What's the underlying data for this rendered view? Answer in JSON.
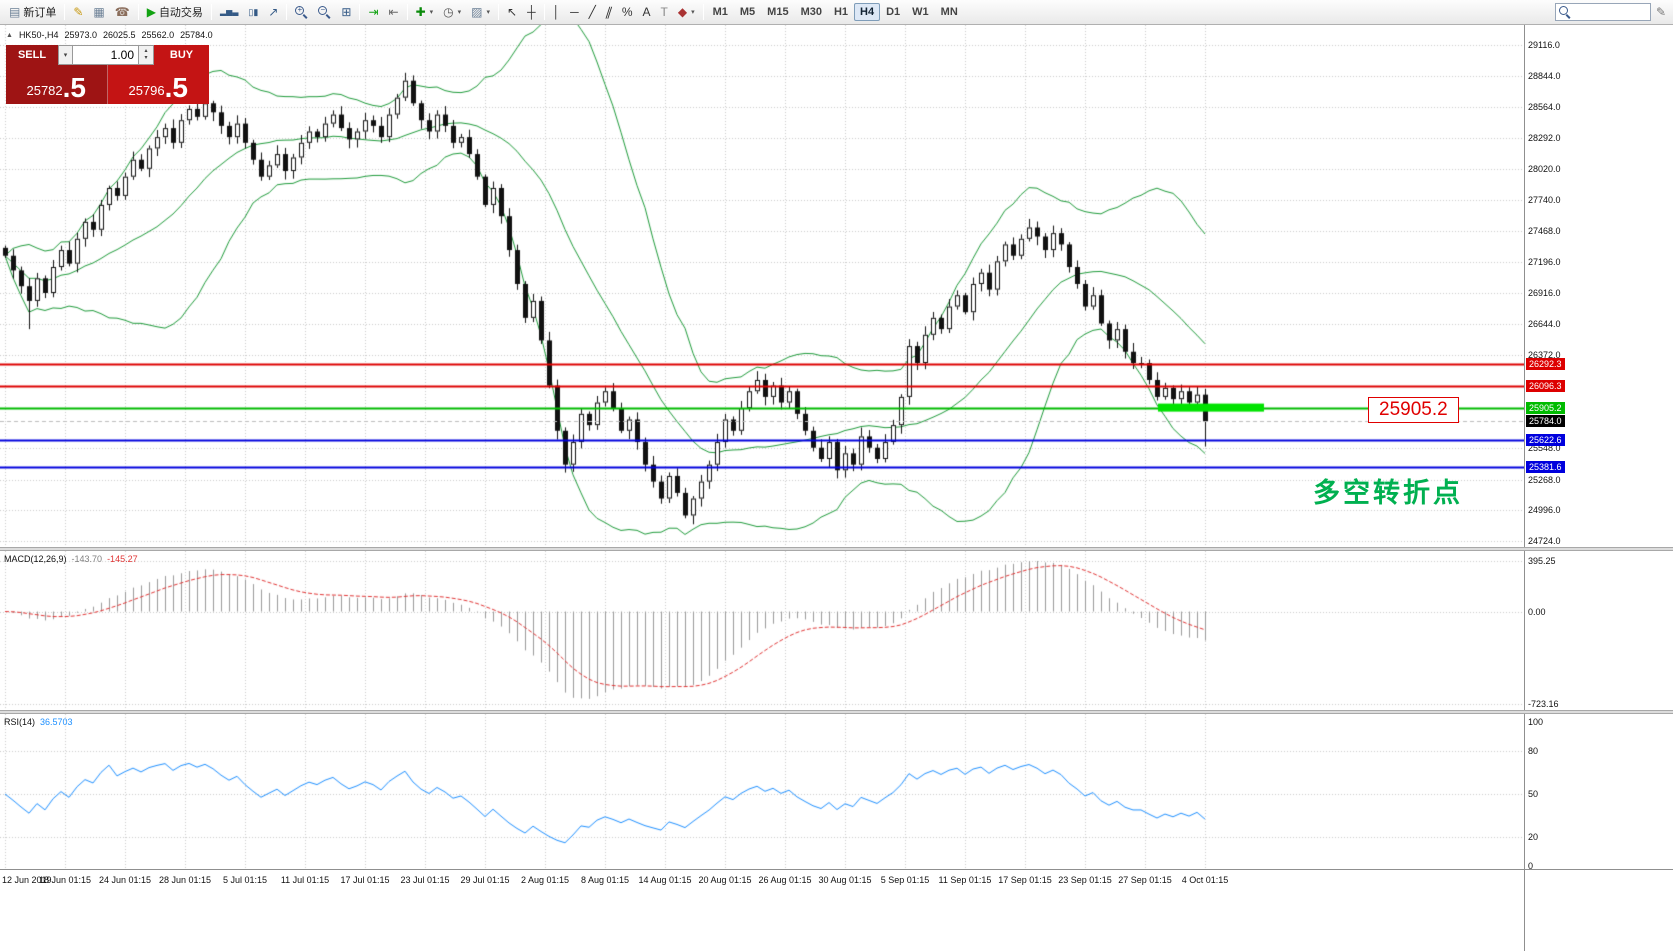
{
  "toolbar": {
    "groups": [
      {
        "name": "standard",
        "items": [
          {
            "name": "new-order-button",
            "icon": "doc",
            "label": "新订单"
          }
        ]
      },
      {
        "name": "apps",
        "items": [
          {
            "name": "meta-editor-button",
            "icon": "pencil"
          },
          {
            "name": "market-watch-button",
            "icon": "monitor"
          },
          {
            "name": "mobile-terminal-button",
            "icon": "phone"
          }
        ]
      },
      {
        "name": "autotrade",
        "items": [
          {
            "name": "autotrading-button",
            "icon": "play",
            "label": "自动交易"
          }
        ]
      },
      {
        "name": "chart-types",
        "items": [
          {
            "name": "bar-chart-button",
            "icon": "bars"
          },
          {
            "name": "candlestick-chart-button",
            "icon": "candles"
          },
          {
            "name": "line-chart-button",
            "icon": "line"
          }
        ]
      },
      {
        "name": "zoom",
        "items": [
          {
            "name": "zoom-in-button",
            "icon": "magplus"
          },
          {
            "name": "zoom-out-button",
            "icon": "magminus"
          },
          {
            "name": "tile-windows-button",
            "icon": "tile"
          }
        ]
      },
      {
        "name": "scroll",
        "items": [
          {
            "name": "auto-scroll-button",
            "icon": "autoscroll"
          },
          {
            "name": "chart-shift-button",
            "icon": "shift"
          }
        ]
      },
      {
        "name": "insert",
        "items": [
          {
            "name": "indicators-button",
            "icon": "indicators",
            "dropdown": true
          },
          {
            "name": "periods-button",
            "icon": "clock",
            "dropdown": true
          },
          {
            "name": "templates-button",
            "icon": "template",
            "dropdown": true
          }
        ]
      },
      {
        "name": "pointer",
        "items": [
          {
            "name": "cursor-button",
            "icon": "cursor"
          },
          {
            "name": "crosshair-button",
            "icon": "crosshair"
          }
        ]
      },
      {
        "name": "objects",
        "items": [
          {
            "name": "vertical-line-button",
            "icon": "vline"
          },
          {
            "name": "horizontal-line-button",
            "icon": "hline"
          },
          {
            "name": "trendline-button",
            "icon": "trend"
          },
          {
            "name": "equidistant-channel-button",
            "icon": "channel"
          },
          {
            "name": "fibonacci-button",
            "icon": "fibo"
          },
          {
            "name": "text-button",
            "icon": "text"
          },
          {
            "name": "text-label-button",
            "icon": "label"
          },
          {
            "name": "arrows-button",
            "icon": "shapes",
            "dropdown": true
          }
        ]
      },
      {
        "name": "timeframes",
        "items": [
          {
            "name": "tf-m1",
            "label": "M1"
          },
          {
            "name": "tf-m5",
            "label": "M5"
          },
          {
            "name": "tf-m15",
            "label": "M15"
          },
          {
            "name": "tf-m30",
            "label": "M30"
          },
          {
            "name": "tf-h1",
            "label": "H1"
          },
          {
            "name": "tf-h4",
            "label": "H4",
            "active": true
          },
          {
            "name": "tf-d1",
            "label": "D1"
          },
          {
            "name": "tf-w1",
            "label": "W1"
          },
          {
            "name": "tf-mn",
            "label": "MN"
          }
        ]
      }
    ],
    "search_placeholder": ""
  },
  "chart_info": {
    "expand_icon": "▲",
    "symbol": "HK50-,H4",
    "open": "25973.0",
    "high": "26025.5",
    "low": "25562.0",
    "close": "25784.0"
  },
  "one_click": {
    "sell_label": "SELL",
    "buy_label": "BUY",
    "volume": "1.00",
    "sell_price": "25782.5",
    "buy_price": "25796.5"
  },
  "annotations": {
    "level_box_label": "25905.2",
    "turning_point_text": "多空转折点"
  },
  "chart_data": {
    "type": "candlestick",
    "symbol": "HK50-",
    "timeframe": "H4",
    "overlay": "bollinger-bands",
    "price_axis": {
      "ticks": [
        "29116.0",
        "28844.0",
        "28564.0",
        "28292.0",
        "28020.0",
        "27740.0",
        "27468.0",
        "27196.0",
        "26916.0",
        "26644.0",
        "26372.0",
        "25548.0",
        "25268.0",
        "24996.0",
        "24724.0"
      ]
    },
    "levels": [
      {
        "value": "26292.3",
        "color": "#dd0000"
      },
      {
        "value": "26096.3",
        "color": "#dd0000"
      },
      {
        "value": "25905.2",
        "color": "#00bb00",
        "highlight": true
      },
      {
        "value": "25622.6",
        "color": "#0000dd"
      },
      {
        "value": "25381.6",
        "color": "#0000dd"
      }
    ],
    "current_price": {
      "value": "25784.0",
      "color": "#000000"
    },
    "candles": {
      "first_open": 27320,
      "closes": [
        27250,
        27120,
        26980,
        26850,
        27050,
        26920,
        27150,
        27300,
        27180,
        27400,
        27550,
        27480,
        27700,
        27850,
        27780,
        27950,
        28100,
        28020,
        28200,
        28300,
        28380,
        28250,
        28450,
        28550,
        28480,
        28600,
        28520,
        28400,
        28300,
        28420,
        28250,
        28100,
        27950,
        28050,
        28150,
        28000,
        28120,
        28250,
        28350,
        28300,
        28420,
        28500,
        28380,
        28280,
        28350,
        28450,
        28400,
        28300,
        28500,
        28650,
        28800,
        28600,
        28450,
        28350,
        28500,
        28400,
        28250,
        28300,
        28150,
        27950,
        27700,
        27850,
        27600,
        27300,
        27000,
        26700,
        26850,
        26500,
        26100,
        25700,
        25400,
        25600,
        25850,
        25750,
        25950,
        26050,
        25900,
        25700,
        25800,
        25600,
        25400,
        25250,
        25100,
        25300,
        25150,
        24950,
        25100,
        25250,
        25400,
        25600,
        25800,
        25700,
        25900,
        26050,
        26150,
        26000,
        26100,
        25950,
        26050,
        25850,
        25700,
        25550,
        25450,
        25600,
        25350,
        25500,
        25400,
        25650,
        25550,
        25450,
        25600,
        25750,
        26000,
        26450,
        26300,
        26550,
        26700,
        26600,
        26800,
        26900,
        26750,
        27000,
        27100,
        26950,
        27200,
        27350,
        27250,
        27400,
        27500,
        27420,
        27300,
        27450,
        27350,
        27150,
        27000,
        26800,
        26900,
        26650,
        26500,
        26600,
        26400,
        26300,
        26300,
        26150,
        26000,
        26080,
        25980,
        26050,
        25950,
        26020,
        25784
      ],
      "wick_overrides": {
        "3": {
          "low": 26600
        },
        "50": {
          "high": 28870
        },
        "150": {
          "low": 25560
        }
      }
    },
    "time_axis": {
      "labels": [
        "12 Jun 2019",
        "18 Jun 01:15",
        "24 Jun 01:15",
        "28 Jun 01:15",
        "5 Jul 01:15",
        "11 Jul 01:15",
        "17 Jul 01:15",
        "23 Jul 01:15",
        "29 Jul 01:15",
        "2 Aug 01:15",
        "8 Aug 01:15",
        "14 Aug 01:15",
        "20 Aug 01:15",
        "26 Aug 01:15",
        "30 Aug 01:15",
        "5 Sep 01:15",
        "11 Sep 01:15",
        "17 Sep 01:15",
        "23 Sep 01:15",
        "27 Sep 01:15",
        "4 Oct 01:15"
      ]
    },
    "macd": {
      "label": "MACD(12,26,9)",
      "main_value": "-143.70",
      "signal_value": "-145.27",
      "axis": [
        "395.25",
        "0.00",
        "-723.16"
      ]
    },
    "rsi": {
      "label": "RSI(14)",
      "value": "36.5703",
      "axis": [
        "100",
        "80",
        "50",
        "20",
        "0"
      ],
      "levels": [
        80,
        50,
        20
      ]
    }
  }
}
